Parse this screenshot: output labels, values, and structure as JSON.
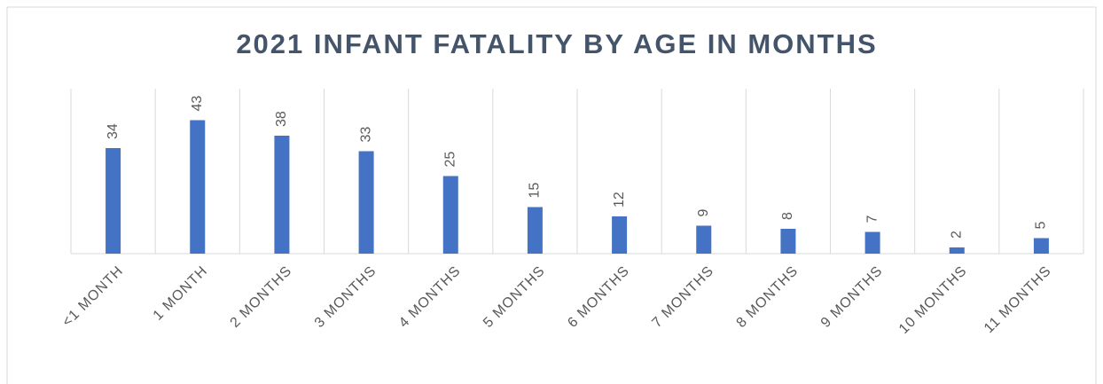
{
  "chart_data": {
    "type": "bar",
    "title": "2021 INFANT FATALITY BY AGE IN MONTHS",
    "categories": [
      "<1 MONTH",
      "1 MONTH",
      "2 MONTHS",
      "3 MONTHS",
      "4 MONTHS",
      "5 MONTHS",
      "6 MONTHS",
      "7 MONTHS",
      "8 MONTHS",
      "9 MONTHS",
      "10 MONTHS",
      "11 MONTHS"
    ],
    "values": [
      34,
      43,
      38,
      33,
      25,
      15,
      12,
      9,
      8,
      7,
      2,
      5
    ],
    "color": "#4472c4",
    "ylim": [
      0,
      50
    ],
    "grid": true
  }
}
